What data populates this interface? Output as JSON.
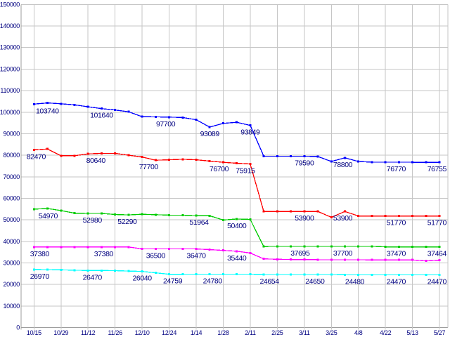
{
  "window": {
    "background": "#ffffff"
  },
  "chart_data": {
    "type": "line",
    "title": "",
    "xlabel": "",
    "ylabel": "",
    "grid": true,
    "legend_position": "none",
    "ylim": [
      0,
      150000
    ],
    "y_ticks": [
      0,
      10000,
      20000,
      30000,
      40000,
      50000,
      60000,
      70000,
      80000,
      90000,
      100000,
      110000,
      120000,
      130000,
      140000,
      150000
    ],
    "x_labels": [
      "10/15",
      "10/29",
      "11/12",
      "11/26",
      "12/10",
      "12/24",
      "1/14",
      "1/28",
      "2/11",
      "2/25",
      "3/11",
      "3/25",
      "4/8",
      "4/22",
      "5/13",
      "5/27"
    ],
    "points_per_series": 31,
    "x_label_every_nth_point": 2,
    "colors": {
      "text": "#000080",
      "grid": "#c6c6c6",
      "axis": "#9e9e9e",
      "background": "#ffffff"
    },
    "series": [
      {
        "name": "series-blue",
        "color": "#0000ff",
        "values": [
          103740,
          104300,
          103900,
          103400,
          102500,
          101640,
          101000,
          100200,
          97900,
          97800,
          97700,
          97500,
          96500,
          93089,
          94800,
          95300,
          93849,
          79590,
          79590,
          79520,
          79590,
          79430,
          77100,
          78800,
          77100,
          76770,
          76770,
          76770,
          76760,
          76755,
          76755
        ],
        "labels": [
          {
            "i": 0,
            "v": 103740,
            "dx": 19
          },
          {
            "i": 5,
            "v": 101640
          },
          {
            "i": 10,
            "v": 97700,
            "dx": -5
          },
          {
            "i": 13,
            "v": 93089
          },
          {
            "i": 16,
            "v": 93849
          },
          {
            "i": 20,
            "v": 79590
          },
          {
            "i": 23,
            "v": 78800,
            "dx": -3
          },
          {
            "i": 27,
            "v": 76770,
            "dx": -4
          },
          {
            "i": 30,
            "v": 76755
          }
        ]
      },
      {
        "name": "series-red",
        "color": "#ff0000",
        "values": [
          82470,
          82900,
          79770,
          79770,
          80640,
          80900,
          80880,
          80000,
          79200,
          77700,
          77900,
          78100,
          77900,
          77300,
          76700,
          76300,
          75915,
          53900,
          53900,
          53900,
          53900,
          53900,
          51200,
          53900,
          51770,
          51770,
          51770,
          51770,
          51770,
          51770,
          51770
        ],
        "labels": [
          {
            "i": 0,
            "v": 82470,
            "dx": 3
          },
          {
            "i": 4,
            "v": 80640,
            "dx": 11
          },
          {
            "i": 9,
            "v": 77700,
            "dx": -10
          },
          {
            "i": 14,
            "v": 76700,
            "dx": -6
          },
          {
            "i": 16,
            "v": 75915,
            "dx": -7
          },
          {
            "i": 20,
            "v": 53900
          },
          {
            "i": 23,
            "v": 53900,
            "dx": -3
          },
          {
            "i": 27,
            "v": 51770,
            "dx": -4
          },
          {
            "i": 30,
            "v": 51770
          }
        ]
      },
      {
        "name": "series-green",
        "color": "#00cc00",
        "values": [
          54970,
          55250,
          54300,
          53100,
          52980,
          52980,
          52500,
          52290,
          52600,
          52400,
          52200,
          52150,
          51964,
          51900,
          49900,
          50400,
          50200,
          37600,
          37695,
          37695,
          37695,
          37695,
          37700,
          37700,
          37700,
          37700,
          37470,
          37470,
          37470,
          37464,
          37464
        ],
        "labels": [
          {
            "i": 0,
            "v": 54970,
            "dx": 20
          },
          {
            "i": 4,
            "v": 52980,
            "dx": 6
          },
          {
            "i": 7,
            "v": 52290,
            "dx": -2
          },
          {
            "i": 12,
            "v": 51964,
            "dx": 4
          },
          {
            "i": 15,
            "v": 50400
          },
          {
            "i": 20,
            "v": 37695,
            "dx": -6
          },
          {
            "i": 23,
            "v": 37700,
            "dx": -3
          },
          {
            "i": 27,
            "v": 37470,
            "dx": -4
          },
          {
            "i": 30,
            "v": 37464
          }
        ]
      },
      {
        "name": "series-magenta",
        "color": "#ff00ff",
        "values": [
          37380,
          37380,
          37380,
          37380,
          37380,
          37380,
          37380,
          37380,
          36500,
          36500,
          36500,
          36500,
          36470,
          36200,
          35800,
          35440,
          34600,
          31900,
          31700,
          31600,
          31550,
          31500,
          31500,
          31450,
          31450,
          31400,
          31400,
          31400,
          31400,
          30900,
          31300
        ],
        "labels": [
          {
            "i": 0,
            "v": 37380,
            "dx": 8
          },
          {
            "i": 5,
            "v": 37380,
            "dx": 3
          },
          {
            "i": 9,
            "v": 36500
          },
          {
            "i": 12,
            "v": 36470
          },
          {
            "i": 15,
            "v": 35440
          }
        ]
      },
      {
        "name": "series-cyan",
        "color": "#00ffff",
        "values": [
          26970,
          26900,
          26800,
          26600,
          26470,
          26470,
          26400,
          26200,
          26040,
          25400,
          24759,
          24760,
          24770,
          24780,
          24780,
          24780,
          24780,
          24654,
          24654,
          24650,
          24650,
          24650,
          24650,
          24480,
          24480,
          24480,
          24470,
          24470,
          24470,
          24470,
          24470
        ],
        "labels": [
          {
            "i": 0,
            "v": 26970,
            "dx": 8
          },
          {
            "i": 4,
            "v": 26470,
            "dx": 6
          },
          {
            "i": 8,
            "v": 26040
          },
          {
            "i": 10,
            "v": 24759,
            "dx": 5
          },
          {
            "i": 13,
            "v": 24780,
            "dx": 4
          },
          {
            "i": 17,
            "v": 24654,
            "dx": 8
          },
          {
            "i": 20,
            "v": 24650,
            "dx": 15
          },
          {
            "i": 23,
            "v": 24480,
            "dx": 14
          },
          {
            "i": 27,
            "v": 24470,
            "dx": -4
          },
          {
            "i": 30,
            "v": 24470
          }
        ]
      }
    ]
  }
}
